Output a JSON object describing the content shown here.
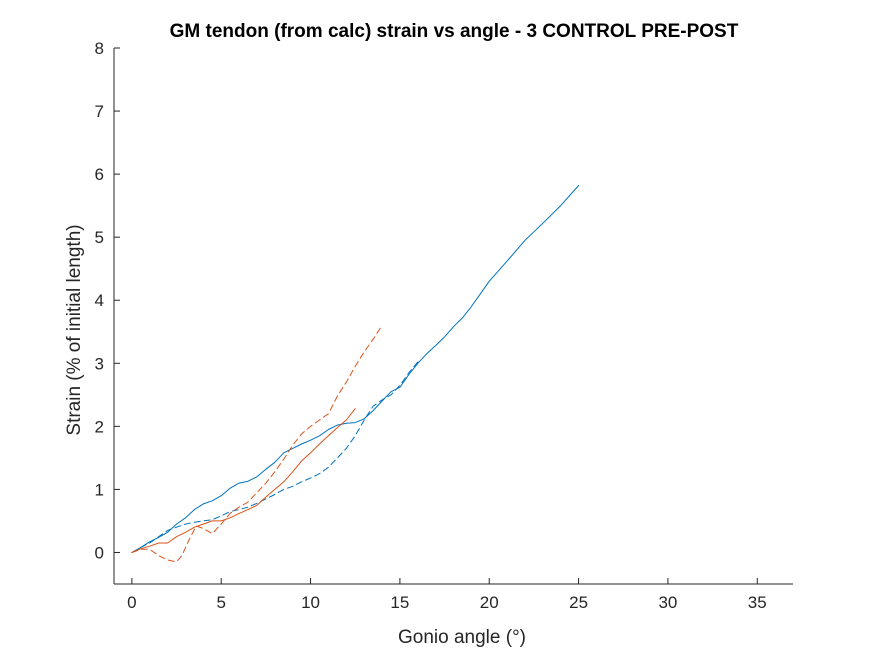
{
  "chart_data": {
    "type": "line",
    "title": "GM tendon (from calc) strain vs angle - 3 CONTROL PRE-POST",
    "xlabel": "Gonio angle (°)",
    "ylabel": "Strain (% of initial length)",
    "xlim": [
      -1,
      37
    ],
    "ylim": [
      -0.5,
      8
    ],
    "xticks": [
      0,
      5,
      10,
      15,
      20,
      25,
      30,
      35
    ],
    "yticks": [
      0,
      1,
      2,
      3,
      4,
      5,
      6,
      7,
      8
    ],
    "grid": false,
    "legend": "none",
    "series": [
      {
        "color": "#0072BD",
        "dash": "solid",
        "x": [
          0,
          0.5,
          1,
          1.5,
          2,
          2.5,
          3,
          3.5,
          4,
          4.5,
          5,
          5.5,
          6,
          6.5,
          7,
          7.5,
          8,
          8.5,
          9,
          9.5,
          10,
          10.5,
          11,
          11.5,
          12,
          12.5,
          13,
          13.5,
          14,
          14.5,
          15,
          15.5,
          16,
          16.5,
          17,
          17.5,
          18,
          18.5,
          19,
          19.5,
          20,
          21,
          22,
          23,
          24,
          25
        ],
        "y": [
          0,
          0.08,
          0.17,
          0.24,
          0.32,
          0.45,
          0.55,
          0.68,
          0.77,
          0.82,
          0.9,
          1.02,
          1.1,
          1.13,
          1.2,
          1.32,
          1.43,
          1.58,
          1.65,
          1.72,
          1.78,
          1.85,
          1.95,
          2.02,
          2.05,
          2.06,
          2.12,
          2.25,
          2.4,
          2.55,
          2.62,
          2.82,
          3.0,
          3.15,
          3.28,
          3.42,
          3.58,
          3.72,
          3.9,
          4.1,
          4.3,
          4.62,
          4.95,
          5.22,
          5.5,
          5.82
        ]
      },
      {
        "color": "#0072BD",
        "dash": "dashed",
        "x": [
          0,
          0.5,
          1,
          1.5,
          2,
          2.5,
          3,
          3.5,
          4,
          4.5,
          5,
          5.5,
          6,
          6.5,
          7,
          7.5,
          8,
          8.5,
          9,
          9.5,
          10,
          10.5,
          11,
          11.5,
          12,
          12.5,
          13,
          13.5,
          14,
          14.5,
          15,
          15.5,
          16
        ],
        "y": [
          0,
          0.08,
          0.15,
          0.25,
          0.35,
          0.4,
          0.45,
          0.48,
          0.5,
          0.52,
          0.58,
          0.65,
          0.68,
          0.72,
          0.78,
          0.85,
          0.92,
          1.0,
          1.05,
          1.12,
          1.18,
          1.25,
          1.35,
          1.5,
          1.65,
          1.85,
          2.1,
          2.32,
          2.42,
          2.5,
          2.65,
          2.85,
          3.02
        ]
      },
      {
        "color": "#D95319",
        "dash": "solid",
        "x": [
          0,
          0.5,
          1,
          1.5,
          2,
          2.5,
          3,
          3.5,
          4,
          4.5,
          5,
          5.5,
          6,
          6.5,
          7,
          7.5,
          8,
          8.5,
          9,
          9.5,
          10,
          10.5,
          11,
          11.5,
          12,
          12.5
        ],
        "y": [
          0,
          0.06,
          0.1,
          0.15,
          0.15,
          0.25,
          0.32,
          0.4,
          0.45,
          0.5,
          0.5,
          0.55,
          0.62,
          0.68,
          0.75,
          0.88,
          1.0,
          1.12,
          1.28,
          1.45,
          1.58,
          1.72,
          1.85,
          1.98,
          2.1,
          2.28
        ]
      },
      {
        "color": "#D95319",
        "dash": "dashed",
        "x": [
          0,
          0.5,
          1,
          1.5,
          2,
          2.5,
          2.8,
          3.2,
          3.6,
          4,
          4.5,
          5,
          5.5,
          6,
          6.5,
          7,
          7.5,
          8,
          8.5,
          9,
          9.5,
          10,
          10.5,
          11,
          11.5,
          12,
          12.5,
          13,
          13.5,
          14
        ],
        "y": [
          0,
          0.05,
          0.05,
          -0.05,
          -0.12,
          -0.15,
          -0.05,
          0.2,
          0.42,
          0.38,
          0.3,
          0.45,
          0.62,
          0.72,
          0.8,
          0.95,
          1.1,
          1.28,
          1.48,
          1.7,
          1.88,
          2.0,
          2.1,
          2.2,
          2.48,
          2.7,
          2.95,
          3.18,
          3.38,
          3.6
        ]
      }
    ]
  }
}
